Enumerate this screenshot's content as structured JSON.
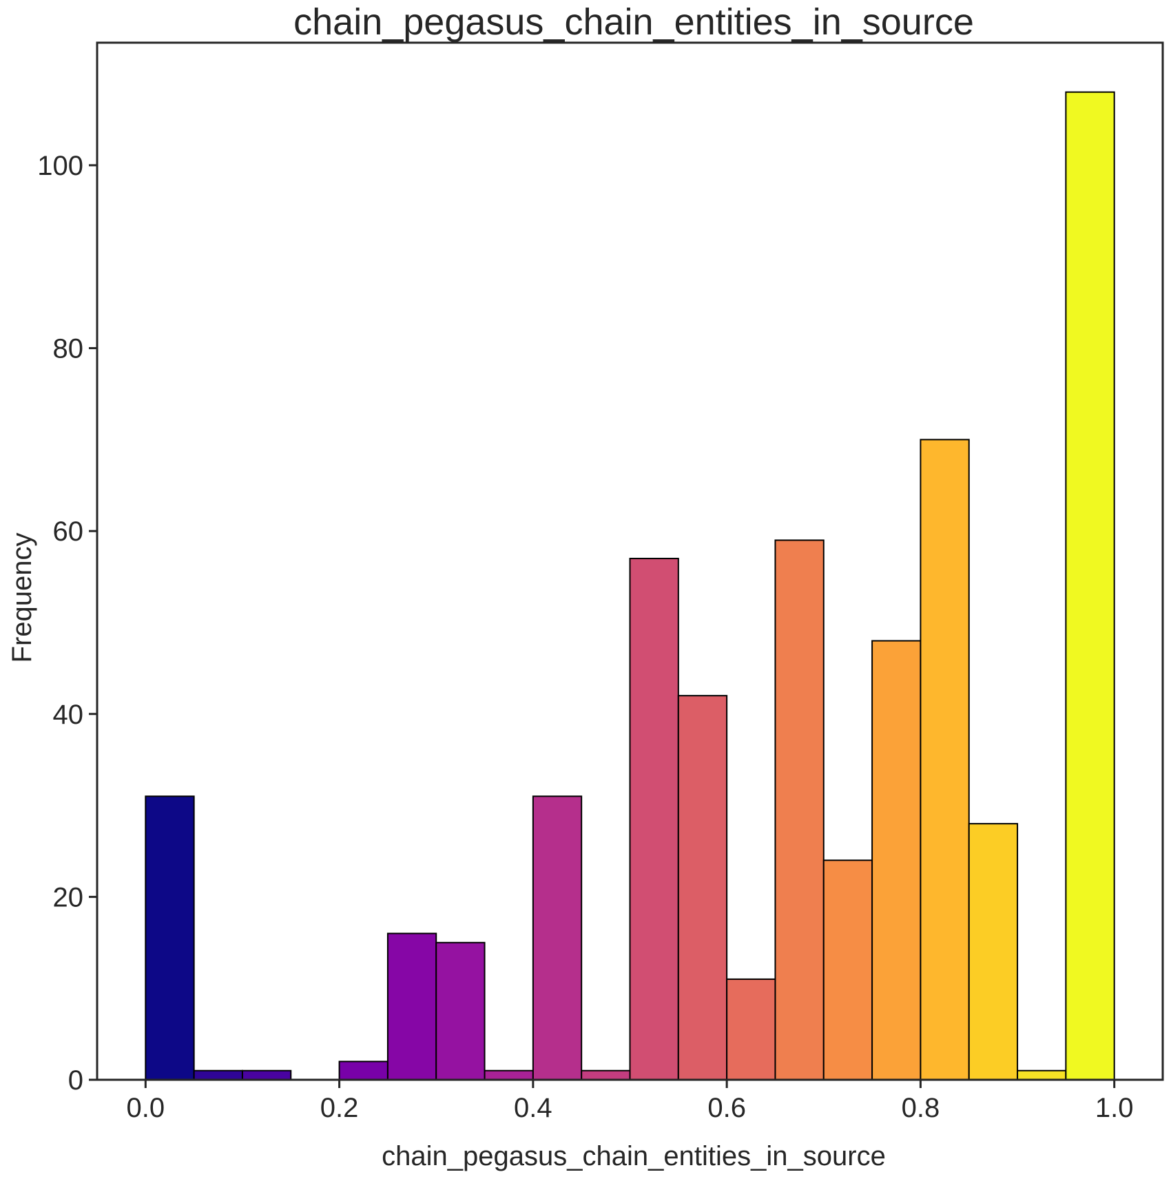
{
  "chart_data": {
    "type": "bar",
    "title": "chain_pegasus_chain_entities_in_source",
    "xlabel": "chain_pegasus_chain_entities_in_source",
    "ylabel": "Frequency",
    "xlim": [
      -0.05,
      1.05
    ],
    "ylim": [
      0,
      113.4
    ],
    "x_ticks": [
      0.0,
      0.2,
      0.4,
      0.6,
      0.8,
      1.0
    ],
    "x_tick_labels": [
      "0.0",
      "0.2",
      "0.4",
      "0.6",
      "0.8",
      "1.0"
    ],
    "y_ticks": [
      0,
      20,
      40,
      60,
      80,
      100
    ],
    "y_tick_labels": [
      "0",
      "20",
      "40",
      "60",
      "80",
      "100"
    ],
    "bins": [
      {
        "x0": 0.0,
        "x1": 0.05,
        "value": 31,
        "color": "#0d0887"
      },
      {
        "x0": 0.05,
        "x1": 0.1,
        "value": 1,
        "color": "#2f0596"
      },
      {
        "x0": 0.1,
        "x1": 0.15,
        "value": 1,
        "color": "#4903a0"
      },
      {
        "x0": 0.15,
        "x1": 0.2,
        "value": 0,
        "color": "#6100a7"
      },
      {
        "x0": 0.2,
        "x1": 0.25,
        "value": 2,
        "color": "#7801a8"
      },
      {
        "x0": 0.25,
        "x1": 0.3,
        "value": 16,
        "color": "#8606a6"
      },
      {
        "x0": 0.3,
        "x1": 0.35,
        "value": 15,
        "color": "#9512a1"
      },
      {
        "x0": 0.35,
        "x1": 0.4,
        "value": 1,
        "color": "#a82296"
      },
      {
        "x0": 0.4,
        "x1": 0.45,
        "value": 31,
        "color": "#b52f8c"
      },
      {
        "x0": 0.45,
        "x1": 0.5,
        "value": 1,
        "color": "#c33d80"
      },
      {
        "x0": 0.5,
        "x1": 0.55,
        "value": 57,
        "color": "#d14e72"
      },
      {
        "x0": 0.55,
        "x1": 0.6,
        "value": 42,
        "color": "#dc5e66"
      },
      {
        "x0": 0.6,
        "x1": 0.65,
        "value": 11,
        "color": "#e66c5c"
      },
      {
        "x0": 0.65,
        "x1": 0.7,
        "value": 59,
        "color": "#ef7f4f"
      },
      {
        "x0": 0.7,
        "x1": 0.75,
        "value": 24,
        "color": "#f68d45"
      },
      {
        "x0": 0.75,
        "x1": 0.8,
        "value": 48,
        "color": "#fba238"
      },
      {
        "x0": 0.8,
        "x1": 0.85,
        "value": 70,
        "color": "#feb72d"
      },
      {
        "x0": 0.85,
        "x1": 0.9,
        "value": 28,
        "color": "#fccd25"
      },
      {
        "x0": 0.9,
        "x1": 0.95,
        "value": 1,
        "color": "#f7e225"
      },
      {
        "x0": 0.95,
        "x1": 1.0,
        "value": 108,
        "color": "#f0f921"
      }
    ],
    "bar_edge_color": "#000000",
    "axis_color": "#262626",
    "grid": false
  }
}
